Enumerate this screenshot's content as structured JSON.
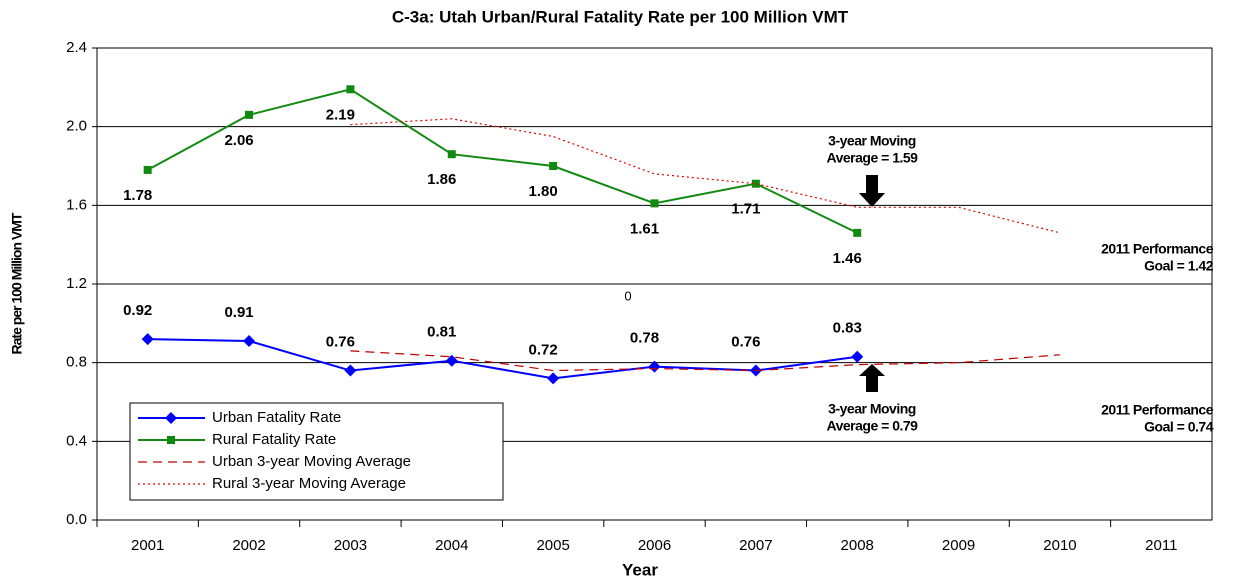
{
  "chart_data": {
    "type": "line",
    "title": "C-3a: Utah Urban/Rural Fatality Rate per 100 Million VMT",
    "x_label": "Year",
    "y_label": "Rate per 100 Million VMT",
    "categories": [
      "2001",
      "2002",
      "2003",
      "2004",
      "2005",
      "2006",
      "2007",
      "2008",
      "2009",
      "2010",
      "2011"
    ],
    "ylim": [
      0,
      2.4
    ],
    "yticks": [
      {
        "value": 0,
        "label": "0.0"
      },
      {
        "value": 0.4,
        "label": "0.4"
      },
      {
        "value": 0.8,
        "label": "0.8"
      },
      {
        "value": 1.2,
        "label": "1.2"
      },
      {
        "value": 1.6,
        "label": "1.6"
      },
      {
        "value": 2,
        "label": "2.0"
      },
      {
        "value": 2.4,
        "label": "2.4"
      }
    ],
    "grid": true,
    "legend": "lower left",
    "series": [
      {
        "name": "Urban Fatality Rate",
        "color": "#0000ff",
        "marker": "diamond",
        "style": "solid",
        "values": [
          0.92,
          0.91,
          0.76,
          0.81,
          0.72,
          0.78,
          0.76,
          0.83,
          null,
          null,
          null
        ],
        "value_labels": [
          "0.92",
          "0.91",
          "0.76",
          "0.81",
          "0.72",
          "0.78",
          "0.76",
          "0.83",
          null,
          null,
          null
        ]
      },
      {
        "name": "Rural Fatality Rate",
        "color": "#128a12",
        "marker": "square",
        "style": "solid",
        "values": [
          1.78,
          2.06,
          2.19,
          1.86,
          1.8,
          1.61,
          1.71,
          1.46,
          null,
          null,
          null
        ],
        "value_labels": [
          "1.78",
          "2.06",
          "2.19",
          "1.86",
          "1.80",
          "1.61",
          "1.71",
          "1.46",
          null,
          null,
          null
        ]
      },
      {
        "name": "Urban 3-year Moving Average",
        "color": "#c00000",
        "style": "dashed",
        "values": [
          null,
          null,
          0.86,
          0.83,
          0.76,
          0.77,
          0.76,
          0.79,
          0.8,
          0.84,
          null
        ]
      },
      {
        "name": "Rural 3-year Moving Average",
        "color": "#e00000",
        "style": "dotted",
        "values": [
          null,
          null,
          2.01,
          2.04,
          1.95,
          1.76,
          1.71,
          1.59,
          1.59,
          1.46,
          null
        ]
      }
    ],
    "annotations": [
      {
        "lines": [
          "3-year Moving",
          "Average = 1.59"
        ]
      },
      {
        "lines": [
          "2011 Performance",
          "Goal = 1.42"
        ]
      },
      {
        "lines": [
          "3-year Moving",
          "Average = 0.79"
        ]
      },
      {
        "lines": [
          "2011 Performance",
          "Goal = 0.74"
        ]
      },
      {
        "lines": [
          "0"
        ]
      }
    ]
  }
}
